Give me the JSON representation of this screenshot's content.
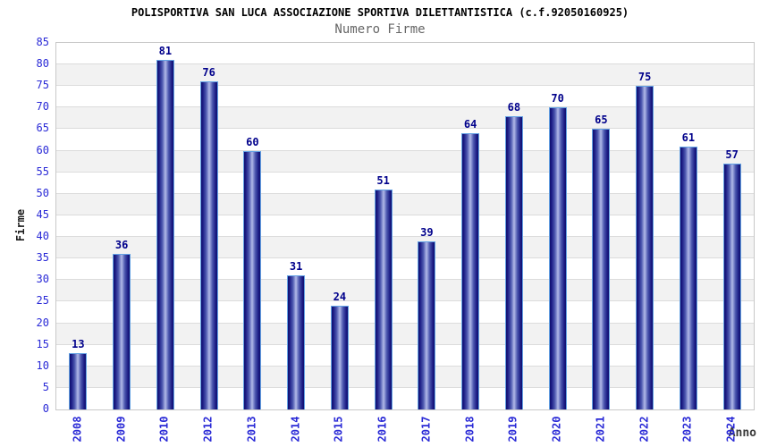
{
  "header": {
    "title": "POLISPORTIVA SAN LUCA ASSOCIAZIONE SPORTIVA DILETTANTISTICA (c.f.92050160925)",
    "subtitle": "Numero Firme"
  },
  "chart_data": {
    "type": "bar",
    "title": "POLISPORTIVA SAN LUCA ASSOCIAZIONE SPORTIVA DILETTANTISTICA (c.f.92050160925)",
    "subtitle": "Numero Firme",
    "xlabel": "Anno",
    "ylabel": "Firme",
    "categories": [
      "2008",
      "2009",
      "2010",
      "2012",
      "2013",
      "2014",
      "2015",
      "2016",
      "2017",
      "2018",
      "2019",
      "2020",
      "2021",
      "2022",
      "2023",
      "2024"
    ],
    "values": [
      13,
      36,
      81,
      76,
      60,
      31,
      24,
      51,
      39,
      64,
      68,
      70,
      65,
      75,
      61,
      57
    ],
    "ylim": [
      0,
      85
    ],
    "ytick_step": 5,
    "grid": true,
    "legend": "none",
    "band_pattern": "alternating horizontal stripes every 5 units"
  },
  "colors": {
    "tick_blue": "#2929d6",
    "value_navy": "#00008b",
    "bar_edge": "#10106e",
    "bar_shade": "#1b1b84",
    "bar_mid_shade": "#4b57ae",
    "bar_mid": "#9ba4dd",
    "bar_highlight": "#b6bde8",
    "bar_outline": "#64a2e4",
    "band_gray": "#f2f2f2",
    "band_white": "#ffffff",
    "grid_line": "#dcdcdc",
    "plot_border": "#c8c8c8",
    "subtitle_gray": "#666666",
    "axis_label_dark": "#3a3a3a",
    "title_black": "#000000"
  }
}
